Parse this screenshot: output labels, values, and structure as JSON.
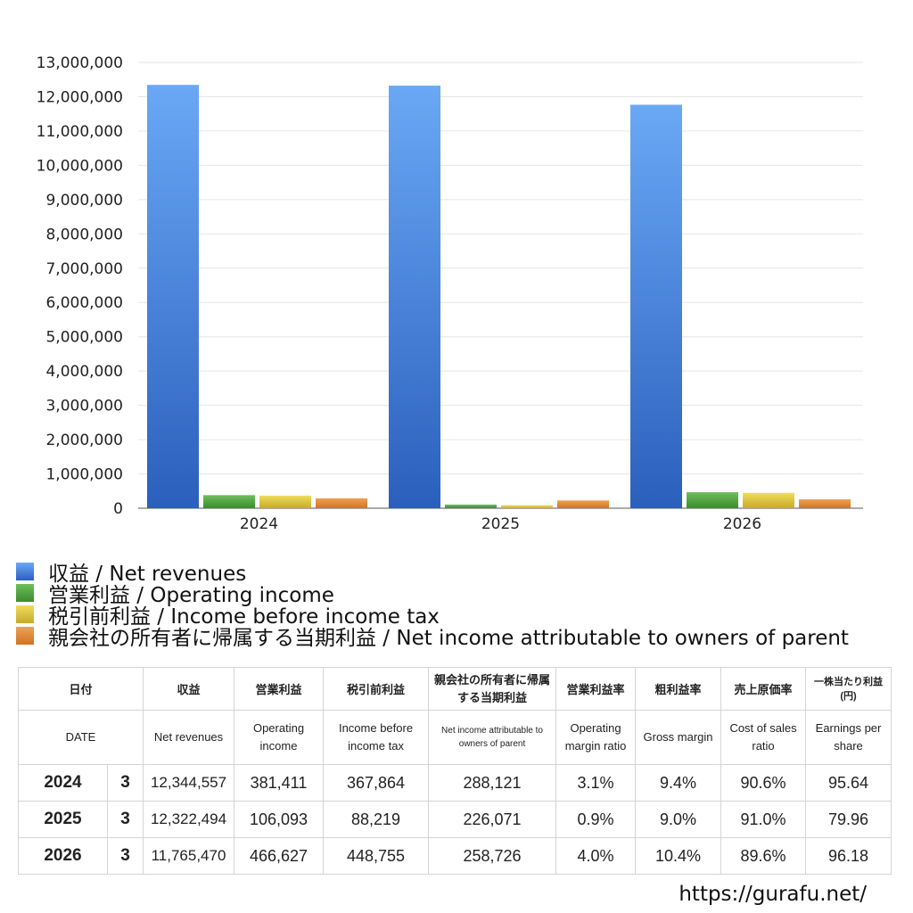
{
  "chart_data": {
    "type": "bar",
    "categories": [
      "2024",
      "2025",
      "2026"
    ],
    "series": [
      {
        "name": "収益 / Net revenues",
        "values": [
          12344557,
          12322494,
          11765470
        ]
      },
      {
        "name": "営業利益 / Operating income",
        "values": [
          381411,
          106093,
          466627
        ]
      },
      {
        "name": "税引前利益 / Income before income tax",
        "values": [
          367864,
          88219,
          448755
        ]
      },
      {
        "name": "親会社の所有者に帰属する当期利益 / Net income attributable to owners of parent",
        "values": [
          288121,
          226071,
          258726
        ]
      }
    ],
    "ylim": [
      0,
      13000000
    ],
    "yticks": [
      "0",
      "1,000,000",
      "2,000,000",
      "3,000,000",
      "4,000,000",
      "5,000,000",
      "6,000,000",
      "7,000,000",
      "8,000,000",
      "9,000,000",
      "10,000,000",
      "11,000,000",
      "12,000,000",
      "13,000,000"
    ],
    "grid": true,
    "legend_position": "bottom",
    "colors": [
      "#3f7fdc",
      "#4ea43f",
      "#dcc53b",
      "#e08a38"
    ]
  },
  "table": {
    "headers_ja": [
      "日付",
      "収益",
      "営業利益",
      "税引前利益",
      "親会社の所有者に帰属する当期利益",
      "営業利益率",
      "粗利益率",
      "売上原価率",
      "一株当たり利益(円)"
    ],
    "headers_en": [
      "DATE",
      "Net revenues",
      "Operating income",
      "Income before income tax",
      "Net income attributable to owners of parent",
      "Operating margin ratio",
      "Gross margin",
      "Cost of sales ratio",
      "Earnings per share"
    ],
    "rows": [
      {
        "year": "2024",
        "month": "3",
        "revenue": "12,344,557",
        "op_income": "381,411",
        "pretax": "367,864",
        "net_income": "288,121",
        "op_margin": "3.1%",
        "gross_margin": "9.4%",
        "cost_ratio": "90.6%",
        "eps": "95.64"
      },
      {
        "year": "2025",
        "month": "3",
        "revenue": "12,322,494",
        "op_income": "106,093",
        "pretax": "88,219",
        "net_income": "226,071",
        "op_margin": "0.9%",
        "gross_margin": "9.0%",
        "cost_ratio": "91.0%",
        "eps": "79.96"
      },
      {
        "year": "2026",
        "month": "3",
        "revenue": "11,765,470",
        "op_income": "466,627",
        "pretax": "448,755",
        "net_income": "258,726",
        "op_margin": "4.0%",
        "gross_margin": "10.4%",
        "cost_ratio": "89.6%",
        "eps": "96.18"
      }
    ]
  },
  "footer": {
    "url": "https://gurafu.net/"
  }
}
